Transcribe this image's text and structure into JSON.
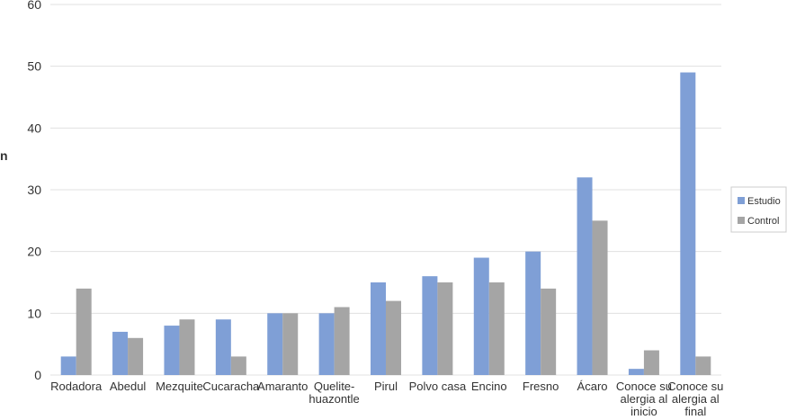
{
  "chart_data": {
    "type": "bar",
    "y_label": "n",
    "categories": [
      "Rodadora",
      "Abedul",
      "Mezquite",
      "Cucaracha",
      "Amaranto",
      "Quelite-huazontle",
      "Pirul",
      "Polvo casa",
      "Encino",
      "Fresno",
      "Ácaro",
      "Conoce su alergia al inicio",
      "Conoce su alergia al final"
    ],
    "series": [
      {
        "name": "Estudio",
        "color": "#7f9fd6",
        "values": [
          3,
          7,
          8,
          9,
          10,
          10,
          15,
          16,
          19,
          20,
          32,
          1,
          49
        ]
      },
      {
        "name": "Control",
        "color": "#a5a5a5",
        "values": [
          14,
          6,
          9,
          3,
          10,
          11,
          12,
          15,
          15,
          14,
          25,
          4,
          3
        ]
      }
    ],
    "ylim": [
      0,
      60
    ],
    "yticks": [
      0,
      10,
      20,
      30,
      40,
      50,
      60
    ],
    "grid": true,
    "legend": "right"
  }
}
